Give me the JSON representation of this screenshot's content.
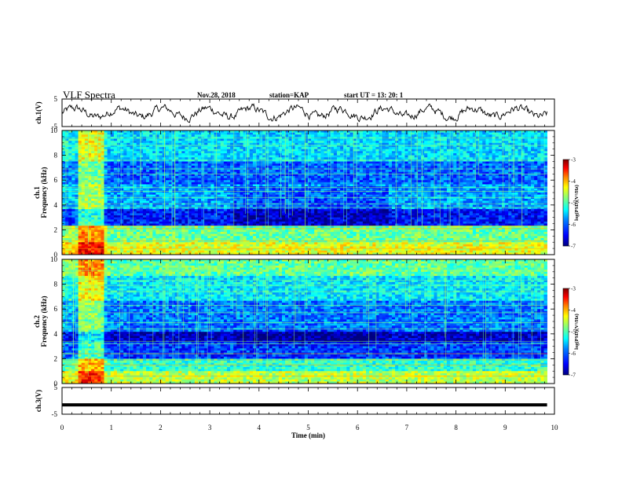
{
  "header": {
    "title": "VLF Spectra",
    "date": "Nov.28, 2018",
    "station": "station=KAP",
    "start_ut": "start  UT =   13: 20: 1"
  },
  "colors": {
    "background": "#ffffff",
    "axes": "#000000",
    "colormap": [
      "#00007f",
      "#0000ff",
      "#007fff",
      "#00ffff",
      "#7fff7f",
      "#ffff00",
      "#ff7f00",
      "#ff0000",
      "#7f0000"
    ]
  },
  "chart_data": [
    {
      "id": "ch1-waveform",
      "type": "line",
      "ylabel": "ch.1(V)",
      "ylim": [
        -5,
        5
      ],
      "yticks": [
        "5",
        "-5"
      ],
      "xlim": [
        0,
        10
      ],
      "note_series": "noisy waveform centered near 0 V with amplitude about ±2 V"
    },
    {
      "id": "ch1-spectrogram",
      "type": "heatmap",
      "ylabel": "ch.1\nFrequency (kHz)",
      "ylim": [
        0,
        10
      ],
      "yticks": [
        "0",
        "2",
        "4",
        "6",
        "8",
        "10"
      ],
      "xlim": [
        0,
        10
      ],
      "colorbar": {
        "label": "log(PSD)(V²/Hz)",
        "range": [
          -7,
          -3
        ],
        "ticks": [
          "-3",
          "-4",
          "-5",
          "-6",
          "-7"
        ]
      }
    },
    {
      "id": "ch2-spectrogram",
      "type": "heatmap",
      "ylabel": "ch.2\nFrequency (kHz)",
      "ylim": [
        0,
        10
      ],
      "yticks": [
        "0",
        "2",
        "4",
        "6",
        "8",
        "10"
      ],
      "xlim": [
        0,
        10
      ],
      "colorbar": {
        "label": "log(PSD)(V²/Hz)",
        "range": [
          -7,
          -3
        ],
        "ticks": [
          "-3",
          "-4",
          "-5",
          "-6",
          "-7"
        ]
      }
    },
    {
      "id": "ch3-waveform",
      "type": "line",
      "ylabel": "ch.3(V)",
      "ylim": [
        -5,
        5
      ],
      "yticks": [
        "5",
        "-5"
      ],
      "xlim": [
        0,
        10
      ],
      "series": [
        {
          "values_constant": -1.5
        }
      ]
    }
  ],
  "xaxis": {
    "label": "Time (min)",
    "ticks": [
      "0",
      "1",
      "2",
      "3",
      "4",
      "5",
      "6",
      "7",
      "8",
      "9",
      "10"
    ],
    "range": [
      0,
      10
    ]
  }
}
